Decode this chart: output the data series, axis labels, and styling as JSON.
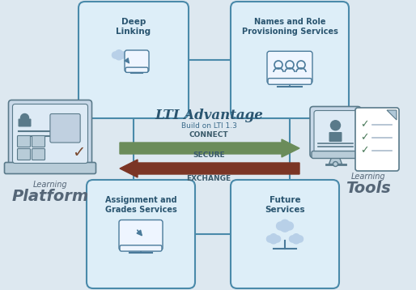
{
  "bg_color": "#dde8f0",
  "box_bg": "#ddeef8",
  "box_border": "#4a8aaa",
  "title_main": "LTI Advantage",
  "title_sub": "Build on LTI 1.3",
  "arrow1_label": "CONNECT",
  "arrow1_color": "#6b8c5a",
  "arrow2_label": "SECURE",
  "arrow2_color": "#7b3525",
  "arrow3_label": "EXCHANGE",
  "left_label_top": "Learning",
  "left_label_bot": "Platform",
  "right_label_top": "Learning",
  "right_label_bot": "Tools",
  "icon_color": "#4a7a9a",
  "laptop_color": "#5a7a8a",
  "check_color": "#7a4a30",
  "green_check": "#4a7a5a",
  "figure_width": 5.14,
  "figure_height": 3.58,
  "dpi": 100
}
